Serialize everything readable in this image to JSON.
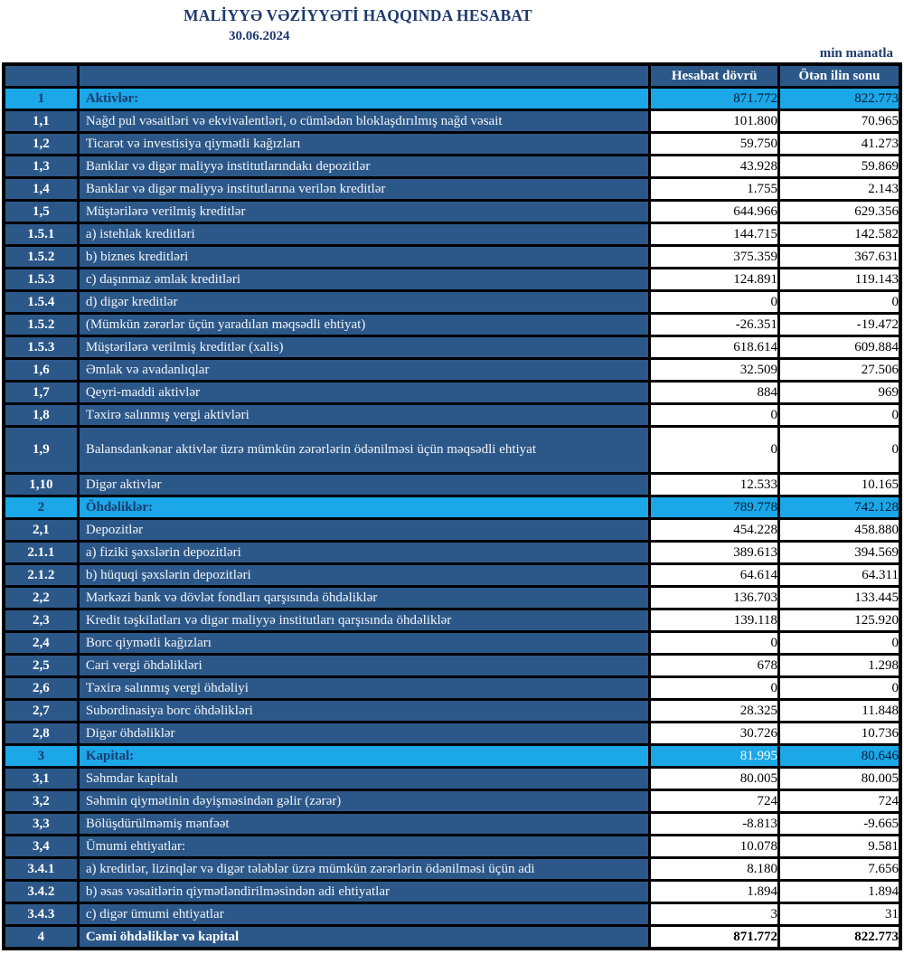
{
  "title": "MALİYYƏ VƏZİYYƏTİ HAQQINDA HESABAT",
  "date": "30.06.2024",
  "unit_note": "min manatla",
  "colors": {
    "dark_blue": "#2c5889",
    "light_blue": "#1ba7e8",
    "navy_text": "#1e3a6e",
    "border": "#000000"
  },
  "table": {
    "header": {
      "col1": "Hesabat dövrü",
      "col2": "Ötən ilin sonu"
    },
    "rows": [
      {
        "num": "1",
        "label": "Aktivlər:",
        "val1": "871.772",
        "val2": "822.773",
        "type": "section"
      },
      {
        "num": "1,1",
        "label": "Nağd pul vəsaitləri və  ekvivalentləri, o cümlədən bloklaşdırılmış nağd vəsait",
        "val1": "101.800",
        "val2": "70.965",
        "type": "item"
      },
      {
        "num": "1,2",
        "label": "Ticarət və investisiya qiymətli kağızları",
        "val1": "59.750",
        "val2": "41.273",
        "type": "item"
      },
      {
        "num": "1,3",
        "label": "Banklar və digər maliyyə institutlarındakı depozitlər",
        "val1": "43.928",
        "val2": "59.869",
        "type": "item"
      },
      {
        "num": "1,4",
        "label": "Banklar və digər maliyyə institutlarına verilən kreditlər",
        "val1": "1.755",
        "val2": "2.143",
        "type": "item"
      },
      {
        "num": "1,5",
        "label": "Müştərilərə verilmiş kreditlər",
        "val1": "644.966",
        "val2": "629.356",
        "type": "item"
      },
      {
        "num": "1.5.1",
        "label": "a) istehlak kreditləri",
        "val1": "144.715",
        "val2": "142.582",
        "type": "item"
      },
      {
        "num": "1.5.2",
        "label": "b) biznes kreditləri",
        "val1": "375.359",
        "val2": "367.631",
        "type": "item"
      },
      {
        "num": "1.5.3",
        "label": "c) daşınmaz əmlak kreditləri",
        "val1": "124.891",
        "val2": "119.143",
        "type": "item"
      },
      {
        "num": "1.5.4",
        "label": "d) digər kreditlər",
        "val1": "0",
        "val2": "0",
        "type": "item"
      },
      {
        "num": "1.5.2",
        "label": "(Mümkün zərərlər üçün yaradılan məqsədli ehtiyat)",
        "val1": "-26.351",
        "val2": "-19.472",
        "type": "item"
      },
      {
        "num": "1.5.3",
        "label": "Müştərilərə verilmiş kreditlər (xalis)",
        "val1": "618.614",
        "val2": "609.884",
        "type": "item"
      },
      {
        "num": "1,6",
        "label": "Əmlak və avadanlıqlar",
        "val1": "32.509",
        "val2": "27.506",
        "type": "item"
      },
      {
        "num": "1,7",
        "label": "Qeyri-maddi aktivlər",
        "val1": "884",
        "val2": "969",
        "type": "item"
      },
      {
        "num": "1,8",
        "label": "Təxirə salınmış vergi aktivləri",
        "val1": "0",
        "val2": "0",
        "type": "item"
      },
      {
        "num": "1,9",
        "label": "Balansdankənar aktivlər üzrə mümkün zərərlərin ödənilməsi üçün məqsədli ehtiyat",
        "val1": "0",
        "val2": "0",
        "type": "item",
        "tall": true
      },
      {
        "num": "1,10",
        "label": "Digər aktivlər",
        "val1": "12.533",
        "val2": "10.165",
        "type": "item"
      },
      {
        "num": "2",
        "label": "Öhdəliklər:",
        "val1": "789.778",
        "val2": "742.128",
        "type": "section"
      },
      {
        "num": "2,1",
        "label": "Depozitlər",
        "val1": "454.228",
        "val2": "458.880",
        "type": "item"
      },
      {
        "num": "2.1.1",
        "label": "a) fiziki şəxslərin depozitləri",
        "val1": "389.613",
        "val2": "394.569",
        "type": "item"
      },
      {
        "num": "2.1.2",
        "label": "b) hüquqi şəxslərin depozitləri",
        "val1": "64.614",
        "val2": "64.311",
        "type": "item"
      },
      {
        "num": "2,2",
        "label": "Mərkəzi bank və dövlət fondları qarşısında öhdəliklər",
        "val1": "136.703",
        "val2": "133.445",
        "type": "item"
      },
      {
        "num": "2,3",
        "label": "Kredit təşkilatları və digər maliyyə institutları qarşısında öhdəliklər",
        "val1": "139.118",
        "val2": "125.920",
        "type": "item"
      },
      {
        "num": "2,4",
        "label": "Borc qiymətli kağızları",
        "val1": "0",
        "val2": "0",
        "type": "item"
      },
      {
        "num": "2,5",
        "label": "Cari vergi öhdəlikləri",
        "val1": "678",
        "val2": "1.298",
        "type": "item"
      },
      {
        "num": "2,6",
        "label": "Təxirə salınmış vergi öhdəliyi",
        "val1": "0",
        "val2": "0",
        "type": "item"
      },
      {
        "num": "2,7",
        "label": "Subordinasiya borc öhdəlikləri",
        "val1": "28.325",
        "val2": "11.848",
        "type": "item"
      },
      {
        "num": "2,8",
        "label": "Digər öhdəliklər",
        "val1": "30.726",
        "val2": "10.736",
        "type": "item"
      },
      {
        "num": "3",
        "label": "Kapital:",
        "val1": "81.995",
        "val2": "80.646",
        "type": "section",
        "val1_white": true
      },
      {
        "num": "3,1",
        "label": "Səhmdar kapitalı",
        "val1": "80.005",
        "val2": "80.005",
        "type": "item"
      },
      {
        "num": "3,2",
        "label": "Səhmin qiymətinin dəyişməsindən gəlir (zərər)",
        "val1": "724",
        "val2": "724",
        "type": "item"
      },
      {
        "num": "3,3",
        "label": "Bölüşdürülməmiş mənfəət",
        "val1": "-8.813",
        "val2": "-9.665",
        "type": "item"
      },
      {
        "num": "3,4",
        "label": "Ümumi ehtiyatlar:",
        "val1": "10.078",
        "val2": "9.581",
        "type": "item"
      },
      {
        "num": "3.4.1",
        "label": "a) kreditlər, lizinqlər və digər tələblər üzrə mümkün zərərlərin ödənilməsi üçün adi",
        "val1": "8.180",
        "val2": "7.656",
        "type": "item"
      },
      {
        "num": "3.4.2",
        "label": "b) əsas vəsaitlərin qiymətləndirilməsindən adi ehtiyatlar",
        "val1": "1.894",
        "val2": "1.894",
        "type": "item"
      },
      {
        "num": "3.4.3",
        "label": "c) digər ümumi ehtiyatlar",
        "val1": "3",
        "val2": "31",
        "type": "item"
      },
      {
        "num": "4",
        "label": "Cəmi öhdəliklər və kapital",
        "val1": "871.772",
        "val2": "822.773",
        "type": "total"
      }
    ]
  }
}
